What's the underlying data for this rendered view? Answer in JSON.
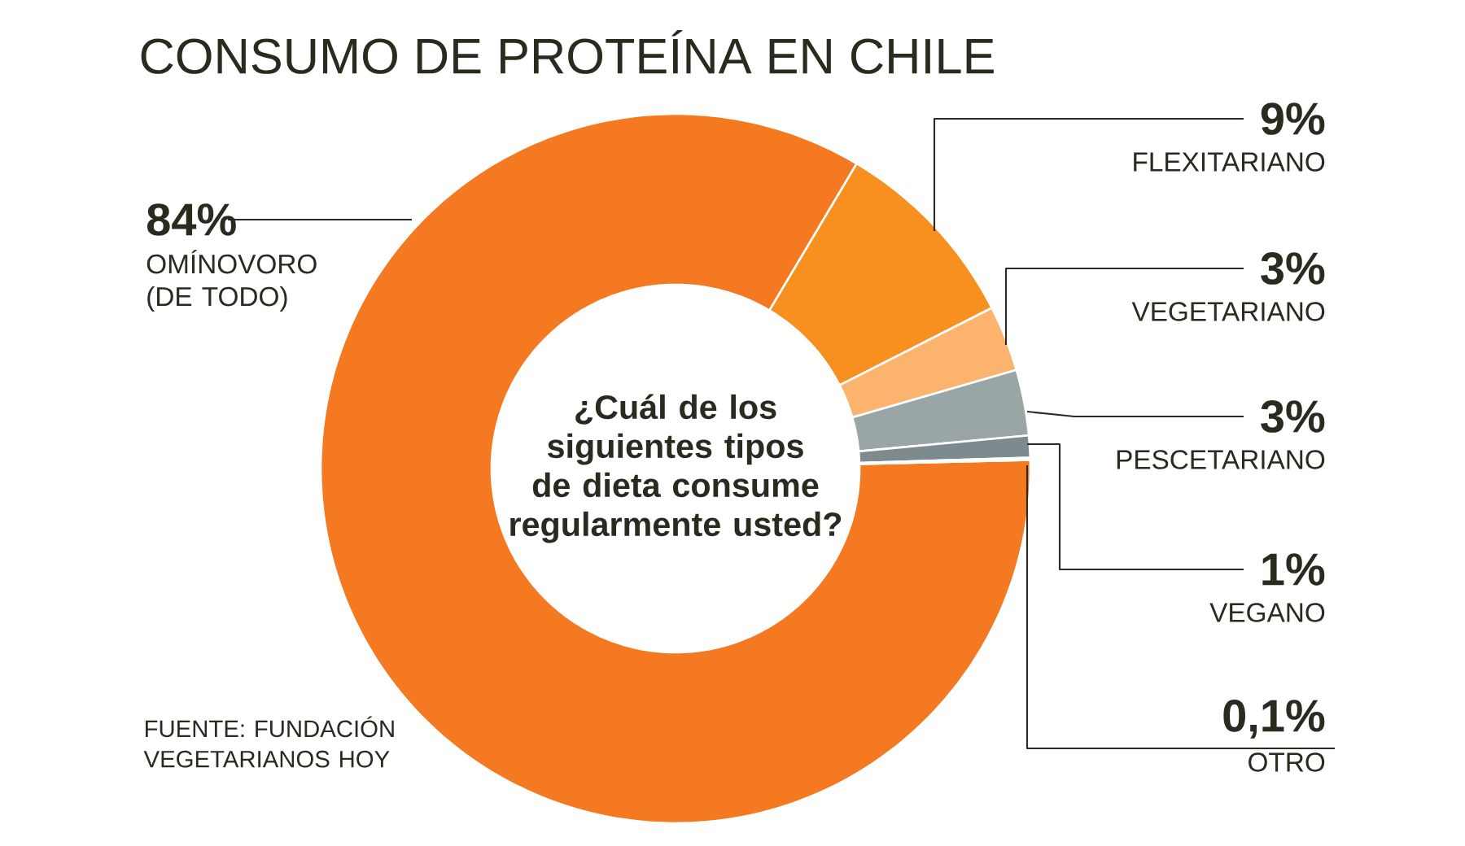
{
  "chart_data": {
    "type": "donut",
    "title": "CONSUMO DE PROTEÍNA EN CHILE",
    "subtitle": "¿Cuál de los siguientes tipos de dieta consume regularmente usted?",
    "categories": [
      "OMÍNOVORO (DE TODO)",
      "FLEXITARIANO",
      "VEGETARIANO",
      "PESCETARIANO",
      "VEGANO",
      "OTRO"
    ],
    "values": [
      84,
      9,
      3,
      3,
      1,
      0.1
    ],
    "value_labels": [
      "84%",
      "9%",
      "3%",
      "3%",
      "1%",
      "0,1%"
    ],
    "colors": [
      "#f47920",
      "#f7901e",
      "#fbb36e",
      "#9aa5a6",
      "#7d8b8e",
      "#5f6f73"
    ],
    "annotations": [
      "FUENTE: FUNDACIÓN VEGETARIANOS HOY"
    ]
  }
}
